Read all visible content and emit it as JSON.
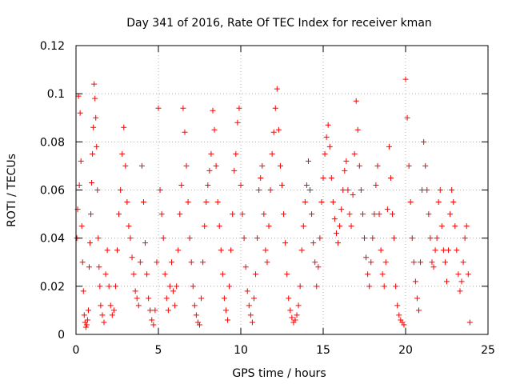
{
  "chart_data": {
    "type": "scatter",
    "title": "Day 341 of 2016, Rate Of TEC Index for receiver kman",
    "xlabel": "GPS time / hours",
    "ylabel": "ROTI / TECUs",
    "xlim": [
      0,
      25
    ],
    "ylim": [
      0,
      0.12
    ],
    "xticks": [
      0,
      5,
      10,
      15,
      20,
      25
    ],
    "yticks": [
      0,
      0.02,
      0.04,
      0.06,
      0.08,
      0.1,
      0.12
    ],
    "xtick_labels": [
      "0",
      "5",
      "10",
      "15",
      "20",
      "25"
    ],
    "ytick_labels": [
      "0",
      "0.02",
      "0.04",
      "0.06",
      "0.08",
      "0.1",
      "0.12"
    ],
    "grid": true,
    "marker": "+",
    "color": "#ff0000",
    "series": [
      {
        "points": [
          [
            0.05,
            0.04
          ],
          [
            0.1,
            0.052
          ],
          [
            0.15,
            0.099
          ],
          [
            0.2,
            0.062
          ],
          [
            0.25,
            0.092
          ],
          [
            0.3,
            0.072
          ],
          [
            0.35,
            0.045
          ],
          [
            0.4,
            0.03
          ],
          [
            0.45,
            0.018
          ],
          [
            0.5,
            0.008
          ],
          [
            0.55,
            0.005
          ],
          [
            0.6,
            0.003
          ],
          [
            0.65,
            0.004
          ],
          [
            0.7,
            0.006
          ],
          [
            0.75,
            0.01
          ],
          [
            0.8,
            0.028
          ],
          [
            0.85,
            0.038
          ],
          [
            0.9,
            0.05
          ],
          [
            0.95,
            0.063
          ],
          [
            1.0,
            0.075
          ],
          [
            1.05,
            0.086
          ],
          [
            1.1,
            0.104
          ],
          [
            1.15,
            0.098
          ],
          [
            1.2,
            0.09
          ],
          [
            1.25,
            0.078
          ],
          [
            1.3,
            0.06
          ],
          [
            1.35,
            0.04
          ],
          [
            1.4,
            0.028
          ],
          [
            1.45,
            0.02
          ],
          [
            1.5,
            0.012
          ],
          [
            1.6,
            0.008
          ],
          [
            1.7,
            0.005
          ],
          [
            1.8,
            0.025
          ],
          [
            1.9,
            0.035
          ],
          [
            2.0,
            0.02
          ],
          [
            2.1,
            0.012
          ],
          [
            2.2,
            0.008
          ],
          [
            2.3,
            0.01
          ],
          [
            2.4,
            0.02
          ],
          [
            2.5,
            0.035
          ],
          [
            2.6,
            0.05
          ],
          [
            2.7,
            0.06
          ],
          [
            2.8,
            0.075
          ],
          [
            2.9,
            0.086
          ],
          [
            3.0,
            0.07
          ],
          [
            3.1,
            0.055
          ],
          [
            3.2,
            0.045
          ],
          [
            3.3,
            0.04
          ],
          [
            3.4,
            0.032
          ],
          [
            3.5,
            0.025
          ],
          [
            3.6,
            0.018
          ],
          [
            3.7,
            0.015
          ],
          [
            3.8,
            0.012
          ],
          [
            3.9,
            0.03
          ],
          [
            4.0,
            0.07
          ],
          [
            4.1,
            0.055
          ],
          [
            4.2,
            0.038
          ],
          [
            4.3,
            0.025
          ],
          [
            4.4,
            0.015
          ],
          [
            4.5,
            0.01
          ],
          [
            4.6,
            0.006
          ],
          [
            4.7,
            0.004
          ],
          [
            4.8,
            0.01
          ],
          [
            4.9,
            0.03
          ],
          [
            5.0,
            0.094
          ],
          [
            5.1,
            0.06
          ],
          [
            5.2,
            0.05
          ],
          [
            5.3,
            0.04
          ],
          [
            5.4,
            0.025
          ],
          [
            5.5,
            0.015
          ],
          [
            5.6,
            0.01
          ],
          [
            5.7,
            0.02
          ],
          [
            5.8,
            0.03
          ],
          [
            5.9,
            0.018
          ],
          [
            6.0,
            0.012
          ],
          [
            6.1,
            0.02
          ],
          [
            6.2,
            0.035
          ],
          [
            6.3,
            0.05
          ],
          [
            6.4,
            0.062
          ],
          [
            6.5,
            0.094
          ],
          [
            6.6,
            0.084
          ],
          [
            6.7,
            0.07
          ],
          [
            6.8,
            0.055
          ],
          [
            6.9,
            0.04
          ],
          [
            7.0,
            0.03
          ],
          [
            7.1,
            0.02
          ],
          [
            7.2,
            0.012
          ],
          [
            7.3,
            0.008
          ],
          [
            7.4,
            0.005
          ],
          [
            7.5,
            0.004
          ],
          [
            7.6,
            0.015
          ],
          [
            7.7,
            0.03
          ],
          [
            7.8,
            0.045
          ],
          [
            7.9,
            0.055
          ],
          [
            8.0,
            0.062
          ],
          [
            8.1,
            0.068
          ],
          [
            8.2,
            0.075
          ],
          [
            8.3,
            0.093
          ],
          [
            8.4,
            0.085
          ],
          [
            8.5,
            0.07
          ],
          [
            8.6,
            0.055
          ],
          [
            8.7,
            0.045
          ],
          [
            8.8,
            0.035
          ],
          [
            8.9,
            0.025
          ],
          [
            9.0,
            0.015
          ],
          [
            9.1,
            0.01
          ],
          [
            9.2,
            0.006
          ],
          [
            9.3,
            0.02
          ],
          [
            9.4,
            0.035
          ],
          [
            9.5,
            0.05
          ],
          [
            9.6,
            0.068
          ],
          [
            9.7,
            0.075
          ],
          [
            9.8,
            0.088
          ],
          [
            9.9,
            0.094
          ],
          [
            10.0,
            0.062
          ],
          [
            10.1,
            0.05
          ],
          [
            10.2,
            0.04
          ],
          [
            10.3,
            0.028
          ],
          [
            10.4,
            0.018
          ],
          [
            10.5,
            0.012
          ],
          [
            10.6,
            0.008
          ],
          [
            10.7,
            0.005
          ],
          [
            10.8,
            0.015
          ],
          [
            10.9,
            0.025
          ],
          [
            11.0,
            0.04
          ],
          [
            11.1,
            0.06
          ],
          [
            11.2,
            0.065
          ],
          [
            11.3,
            0.07
          ],
          [
            11.4,
            0.05
          ],
          [
            11.5,
            0.035
          ],
          [
            11.6,
            0.03
          ],
          [
            11.7,
            0.045
          ],
          [
            11.8,
            0.06
          ],
          [
            11.9,
            0.075
          ],
          [
            12.0,
            0.084
          ],
          [
            12.1,
            0.094
          ],
          [
            12.2,
            0.102
          ],
          [
            12.3,
            0.085
          ],
          [
            12.4,
            0.07
          ],
          [
            12.5,
            0.062
          ],
          [
            12.6,
            0.05
          ],
          [
            12.7,
            0.038
          ],
          [
            12.8,
            0.025
          ],
          [
            12.9,
            0.015
          ],
          [
            13.0,
            0.01
          ],
          [
            13.1,
            0.007
          ],
          [
            13.2,
            0.005
          ],
          [
            13.3,
            0.006
          ],
          [
            13.4,
            0.008
          ],
          [
            13.5,
            0.012
          ],
          [
            13.6,
            0.02
          ],
          [
            13.7,
            0.035
          ],
          [
            13.8,
            0.045
          ],
          [
            13.9,
            0.055
          ],
          [
            14.0,
            0.062
          ],
          [
            14.1,
            0.072
          ],
          [
            14.2,
            0.06
          ],
          [
            14.3,
            0.05
          ],
          [
            14.4,
            0.038
          ],
          [
            14.5,
            0.03
          ],
          [
            14.6,
            0.02
          ],
          [
            14.7,
            0.028
          ],
          [
            14.8,
            0.04
          ],
          [
            14.9,
            0.055
          ],
          [
            15.0,
            0.065
          ],
          [
            15.1,
            0.075
          ],
          [
            15.2,
            0.082
          ],
          [
            15.3,
            0.087
          ],
          [
            15.4,
            0.078
          ],
          [
            15.5,
            0.065
          ],
          [
            15.6,
            0.055
          ],
          [
            15.7,
            0.048
          ],
          [
            15.8,
            0.042
          ],
          [
            15.9,
            0.038
          ],
          [
            16.0,
            0.045
          ],
          [
            16.1,
            0.052
          ],
          [
            16.2,
            0.06
          ],
          [
            16.3,
            0.068
          ],
          [
            16.4,
            0.072
          ],
          [
            16.5,
            0.06
          ],
          [
            16.6,
            0.05
          ],
          [
            16.7,
            0.045
          ],
          [
            16.8,
            0.058
          ],
          [
            16.9,
            0.075
          ],
          [
            17.0,
            0.097
          ],
          [
            17.1,
            0.085
          ],
          [
            17.2,
            0.07
          ],
          [
            17.3,
            0.06
          ],
          [
            17.4,
            0.05
          ],
          [
            17.5,
            0.04
          ],
          [
            17.6,
            0.032
          ],
          [
            17.7,
            0.025
          ],
          [
            17.8,
            0.02
          ],
          [
            17.9,
            0.03
          ],
          [
            18.0,
            0.04
          ],
          [
            18.1,
            0.05
          ],
          [
            18.2,
            0.062
          ],
          [
            18.3,
            0.07
          ],
          [
            18.4,
            0.05
          ],
          [
            18.5,
            0.035
          ],
          [
            18.6,
            0.025
          ],
          [
            18.7,
            0.02
          ],
          [
            18.8,
            0.03
          ],
          [
            18.9,
            0.052
          ],
          [
            19.0,
            0.078
          ],
          [
            19.1,
            0.065
          ],
          [
            19.2,
            0.05
          ],
          [
            19.3,
            0.04
          ],
          [
            19.4,
            0.02
          ],
          [
            19.5,
            0.012
          ],
          [
            19.6,
            0.008
          ],
          [
            19.7,
            0.006
          ],
          [
            19.8,
            0.005
          ],
          [
            19.9,
            0.004
          ],
          [
            20.0,
            0.106
          ],
          [
            20.1,
            0.09
          ],
          [
            20.2,
            0.07
          ],
          [
            20.3,
            0.055
          ],
          [
            20.4,
            0.04
          ],
          [
            20.5,
            0.03
          ],
          [
            20.6,
            0.022
          ],
          [
            20.7,
            0.015
          ],
          [
            20.8,
            0.01
          ],
          [
            20.9,
            0.03
          ],
          [
            21.0,
            0.06
          ],
          [
            21.1,
            0.08
          ],
          [
            21.2,
            0.07
          ],
          [
            21.3,
            0.06
          ],
          [
            21.4,
            0.05
          ],
          [
            21.5,
            0.04
          ],
          [
            21.6,
            0.03
          ],
          [
            21.7,
            0.028
          ],
          [
            21.8,
            0.035
          ],
          [
            21.9,
            0.04
          ],
          [
            22.0,
            0.055
          ],
          [
            22.1,
            0.06
          ],
          [
            22.2,
            0.045
          ],
          [
            22.3,
            0.035
          ],
          [
            22.4,
            0.03
          ],
          [
            22.5,
            0.022
          ],
          [
            22.6,
            0.035
          ],
          [
            22.7,
            0.05
          ],
          [
            22.8,
            0.06
          ],
          [
            22.9,
            0.055
          ],
          [
            23.0,
            0.045
          ],
          [
            23.1,
            0.035
          ],
          [
            23.2,
            0.025
          ],
          [
            23.3,
            0.018
          ],
          [
            23.4,
            0.022
          ],
          [
            23.5,
            0.03
          ],
          [
            23.6,
            0.04
          ],
          [
            23.7,
            0.045
          ],
          [
            23.8,
            0.025
          ],
          [
            23.9,
            0.005
          ]
        ]
      }
    ]
  }
}
